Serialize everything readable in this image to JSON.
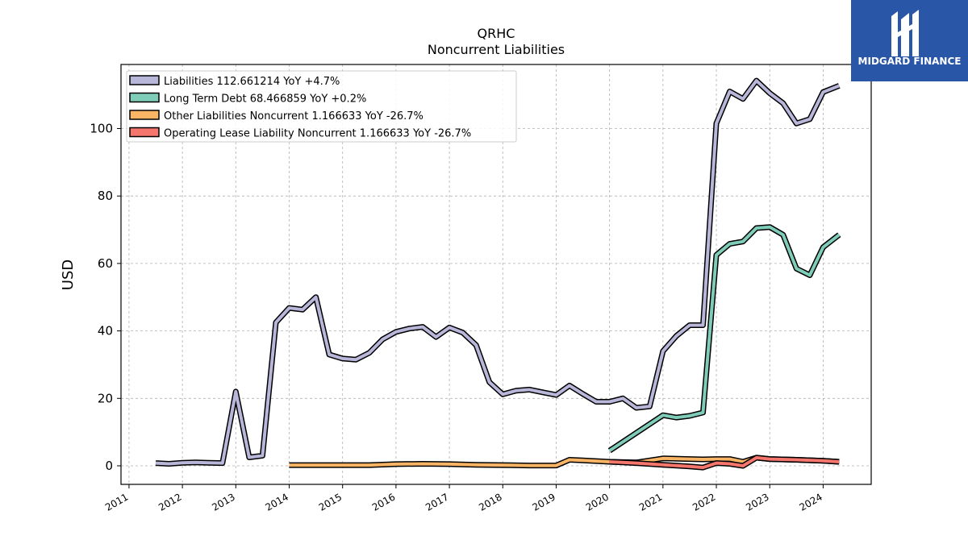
{
  "chart_data": {
    "type": "line",
    "title": "QRHC",
    "subtitle": "Noncurrent  Liabilities",
    "ylabel": "USD",
    "xlabel": "",
    "xlim": [
      2010.85,
      2024.9
    ],
    "ylim": [
      -5.5,
      119
    ],
    "yticks": [
      0,
      20,
      40,
      60,
      80,
      100
    ],
    "xticks": [
      2011,
      2012,
      2013,
      2014,
      2015,
      2016,
      2017,
      2018,
      2019,
      2020,
      2021,
      2022,
      2023,
      2024
    ],
    "grid": true,
    "legend_position": "top-left",
    "series": [
      {
        "name": "Liabilities",
        "legend_label": "Liabilities  112.661214 YoY +4.7%",
        "color": "#b9b7d9",
        "x": [
          2011.5,
          2011.75,
          2012.0,
          2012.25,
          2012.5,
          2012.75,
          2013.0,
          2013.25,
          2013.5,
          2013.75,
          2014.0,
          2014.25,
          2014.5,
          2014.75,
          2015.0,
          2015.25,
          2015.5,
          2015.75,
          2016.0,
          2016.25,
          2016.5,
          2016.75,
          2017.0,
          2017.25,
          2017.5,
          2017.75,
          2018.0,
          2018.25,
          2018.5,
          2018.75,
          2019.0,
          2019.25,
          2019.5,
          2019.75,
          2020.0,
          2020.25,
          2020.5,
          2020.75,
          2021.0,
          2021.25,
          2021.5,
          2021.75,
          2022.0,
          2022.25,
          2022.5,
          2022.75,
          2023.0,
          2023.25,
          2023.5,
          2023.75,
          2024.0,
          2024.3
        ],
        "values": [
          0.8,
          0.6,
          0.9,
          1.0,
          0.9,
          0.8,
          22.0,
          2.5,
          3.0,
          42.5,
          46.8,
          46.3,
          50.0,
          33.0,
          31.8,
          31.5,
          33.5,
          37.5,
          39.7,
          40.7,
          41.2,
          38.2,
          41.0,
          39.5,
          35.8,
          24.8,
          21.2,
          22.3,
          22.6,
          21.8,
          21.0,
          23.8,
          21.3,
          19.0,
          19.0,
          20.0,
          17.2,
          17.6,
          34.0,
          38.5,
          41.7,
          41.7,
          101.5,
          111.0,
          108.8,
          114.2,
          110.5,
          107.5,
          101.5,
          102.8,
          110.8,
          112.7
        ]
      },
      {
        "name": "Long Term Debt",
        "legend_label": "Long Term Debt  68.466859 YoY +0.2%",
        "color": "#7fcdb9",
        "x": [
          2020.0,
          2021.0,
          2021.25,
          2021.5,
          2021.75,
          2022.0,
          2022.25,
          2022.5,
          2022.75,
          2023.0,
          2023.25,
          2023.5,
          2023.75,
          2024.0,
          2024.3
        ],
        "values": [
          4.5,
          15.0,
          14.3,
          14.8,
          15.8,
          62.5,
          65.8,
          66.5,
          70.5,
          70.8,
          68.5,
          58.5,
          56.5,
          64.8,
          68.5
        ]
      },
      {
        "name": "Other Liabilities Noncurrent",
        "legend_label": "Other Liabilities Noncurrent  1.166633 YoY -26.7%",
        "color": "#f9b466",
        "x": [
          2014.0,
          2014.5,
          2015.0,
          2015.5,
          2016.0,
          2016.5,
          2017.0,
          2017.5,
          2018.0,
          2018.5,
          2019.0,
          2019.25,
          2019.5,
          2019.75,
          2020.0,
          2020.5,
          2021.0,
          2021.5,
          2021.75,
          2022.0,
          2022.25,
          2022.5,
          2022.75,
          2023.0,
          2023.5,
          2024.0,
          2024.3
        ],
        "values": [
          0.2,
          0.2,
          0.2,
          0.2,
          0.5,
          0.6,
          0.5,
          0.3,
          0.2,
          0.1,
          0.1,
          1.8,
          1.6,
          1.4,
          1.2,
          1.0,
          2.2,
          2.0,
          1.9,
          2.0,
          2.0,
          1.2,
          2.4,
          2.0,
          1.8,
          1.5,
          1.2
        ]
      },
      {
        "name": "Operating Lease Liability Noncurrent",
        "legend_label": "Operating Lease Liability Noncurrent  1.166633 YoY -26.7%",
        "color": "#f4766c",
        "x": [
          2020.0,
          2020.5,
          2021.0,
          2021.5,
          2021.75,
          2022.0,
          2022.25,
          2022.5,
          2022.75,
          2023.0,
          2023.5,
          2024.0,
          2024.3
        ],
        "values": [
          1.2,
          0.8,
          0.3,
          -0.2,
          -0.5,
          0.8,
          0.6,
          0.0,
          2.4,
          2.0,
          1.8,
          1.5,
          1.2
        ]
      }
    ]
  },
  "logo": {
    "text": "MIDGARD FINANCE",
    "color": "#2a56a8"
  }
}
